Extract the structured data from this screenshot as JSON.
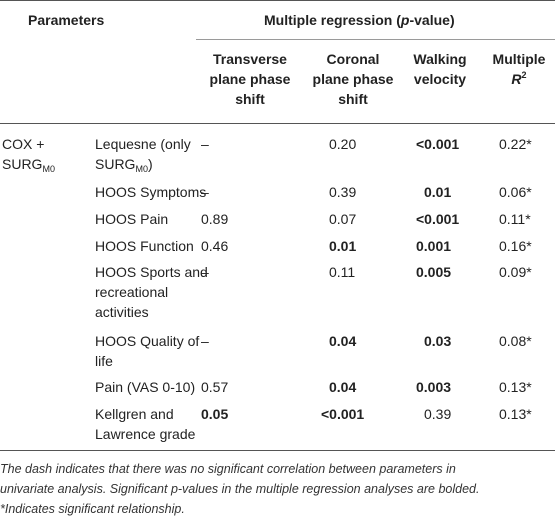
{
  "header": {
    "parameters": "Parameters",
    "group_title_text": "Multiple regression (",
    "group_title_p": "p",
    "group_title_tail": "-value)",
    "col_transverse_line1": "Transverse",
    "col_transverse_line2": "plane phase",
    "col_transverse_line3": "shift",
    "col_coronal_line1": "Coronal",
    "col_coronal_line2": "plane phase",
    "col_coronal_line3": "shift",
    "col_walking_line1": "Walking",
    "col_walking_line2": "velocity",
    "col_r2_line1": "Multiple",
    "col_r2_line2_base": "R",
    "col_r2_line2_sup": "2"
  },
  "group_label": {
    "line1": "COX +",
    "line2_base": "SURG",
    "line2_sub": "M0"
  },
  "rows": [
    {
      "param_line1": "Lequesne (only",
      "param_line2_base": "SURG",
      "param_line2_sub": "M0",
      "param_line2_tail": ")",
      "transverse": "–",
      "coronal": "0.20",
      "walking": "<0.001",
      "r2": "0.22*"
    },
    {
      "param_line1": "HOOS Symptoms",
      "transverse": "–",
      "coronal": "0.39",
      "walking": "0.01",
      "r2": "0.06*"
    },
    {
      "param_line1": "HOOS Pain",
      "transverse": "0.89",
      "coronal": "0.07",
      "walking": "<0.001",
      "r2": "0.11*"
    },
    {
      "param_line1": "HOOS Function",
      "transverse": "0.46",
      "coronal": "0.01",
      "walking": "0.001",
      "r2": "0.16*"
    },
    {
      "param_line1": "HOOS Sports and",
      "param_line2": "recreational",
      "param_line3": "activities",
      "transverse": "–",
      "coronal": "0.11",
      "walking": "0.005",
      "r2": "0.09*"
    },
    {
      "param_line1": "HOOS Quality of",
      "param_line2": "life",
      "transverse": "–",
      "coronal": "0.04",
      "walking": "0.03",
      "r2": "0.08*"
    },
    {
      "param_line1": "Pain (VAS 0-10)",
      "transverse": "0.57",
      "coronal": "0.04",
      "walking": "0.003",
      "r2": "0.13*"
    },
    {
      "param_line1": "Kellgren and",
      "param_line2": "Lawrence grade",
      "transverse": "0.05",
      "coronal": "<0.001",
      "walking": "0.39",
      "r2": "0.13*"
    }
  ],
  "footnote": {
    "line1": "The dash indicates that there was no significant correlation between parameters in",
    "line2_a": "univariate analysis. Significant ",
    "line2_p": "p",
    "line2_b": "-values in the multiple regression analyses are bolded.",
    "line3": "*Indicates significant relationship."
  }
}
